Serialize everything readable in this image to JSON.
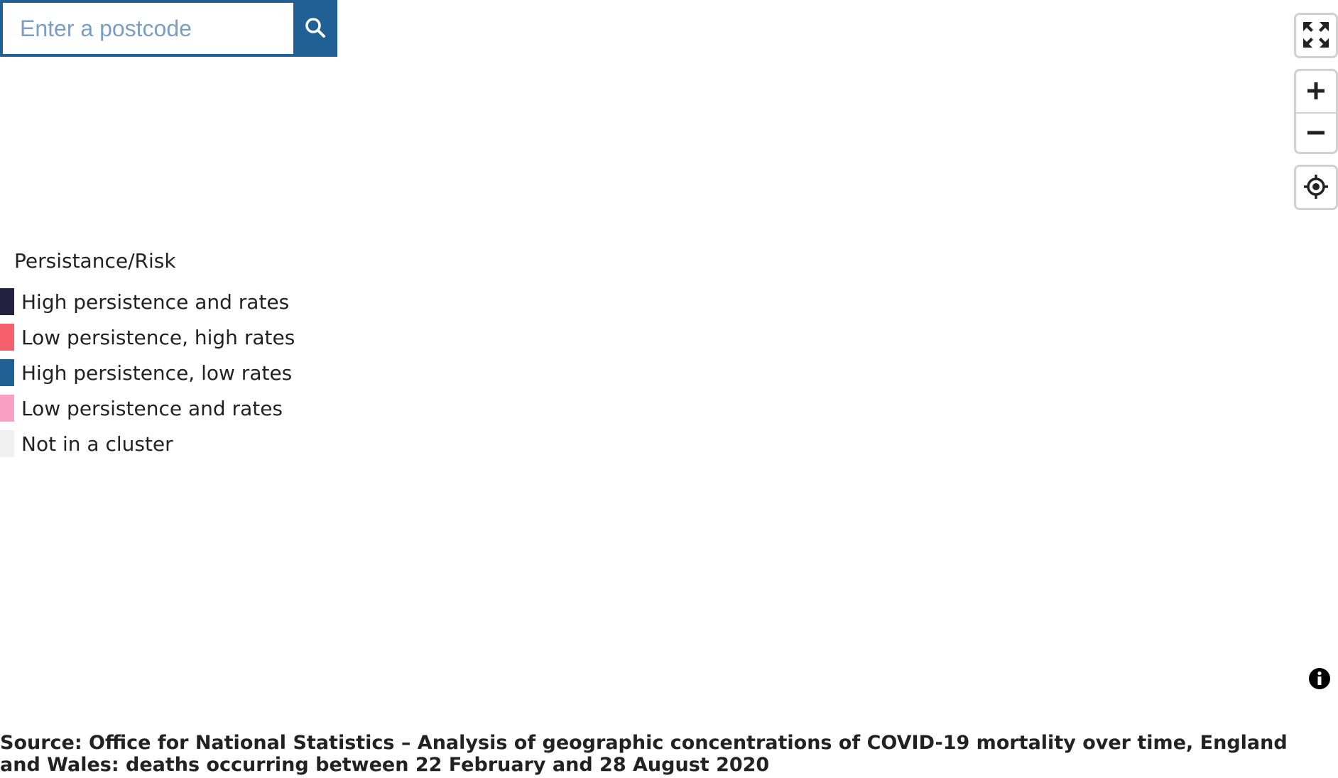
{
  "search": {
    "placeholder": "Enter a postcode",
    "value": ""
  },
  "icons": {
    "search": "search-icon",
    "fullscreen": "fullscreen-icon",
    "zoom_in": "plus-icon",
    "zoom_out": "minus-icon",
    "locate": "crosshair-icon",
    "info": "info-icon"
  },
  "colors": {
    "accent": "#206095"
  },
  "legend": {
    "title": "Persistance/Risk",
    "items": [
      {
        "label": "High persistence and rates",
        "color": "#22213f"
      },
      {
        "label": "Low persistence, high rates",
        "color": "#f6606d"
      },
      {
        "label": "High persistence, low rates",
        "color": "#206095"
      },
      {
        "label": "Low persistence and rates",
        "color": "#f89fc3"
      },
      {
        "label": "Not in a cluster",
        "color": "#f0f0f0"
      }
    ]
  },
  "source": {
    "text": "Source: Office for National Statistics – Analysis of geographic concentrations of COVID-19 mortality over time, England and Wales: deaths occurring between 22 February and 28 August 2020"
  }
}
